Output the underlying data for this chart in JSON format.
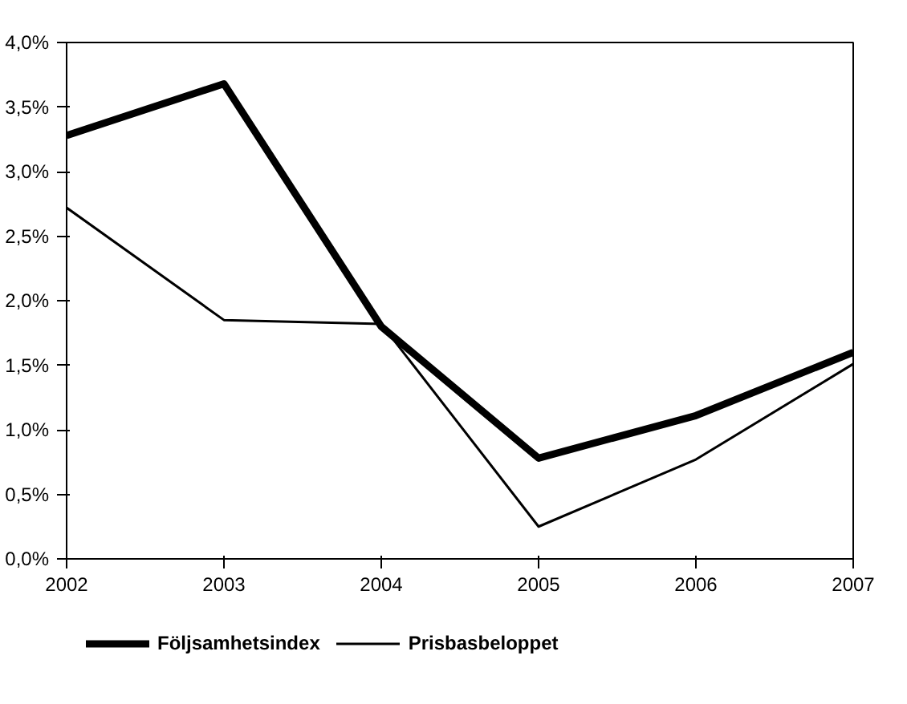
{
  "chart_data": {
    "type": "line",
    "categories": [
      "2002",
      "2003",
      "2004",
      "2005",
      "2006",
      "2007"
    ],
    "series": [
      {
        "name": "Följsamhetsindex",
        "color": "#000000",
        "values": [
          3.28,
          3.68,
          1.8,
          0.78,
          1.11,
          1.6
        ]
      },
      {
        "name": "Prisbasbeloppet",
        "color": "#000000",
        "values": [
          2.72,
          1.85,
          1.82,
          0.25,
          0.77,
          1.51
        ]
      }
    ],
    "ylim": [
      0,
      4
    ],
    "yticks": [
      {
        "value": 0,
        "label": "0,0%"
      },
      {
        "value": 0.5,
        "label": "0,5%"
      },
      {
        "value": 1,
        "label": "1,0%"
      },
      {
        "value": 1.5,
        "label": "1,5%"
      },
      {
        "value": 2,
        "label": "2,0%"
      },
      {
        "value": 2.5,
        "label": "2,5%"
      },
      {
        "value": 3,
        "label": "3,0%"
      },
      {
        "value": 3.5,
        "label": "3,5%"
      },
      {
        "value": 4,
        "label": "4,0%"
      }
    ],
    "legend": "bottom",
    "marker": "none",
    "line_style": "solid"
  }
}
